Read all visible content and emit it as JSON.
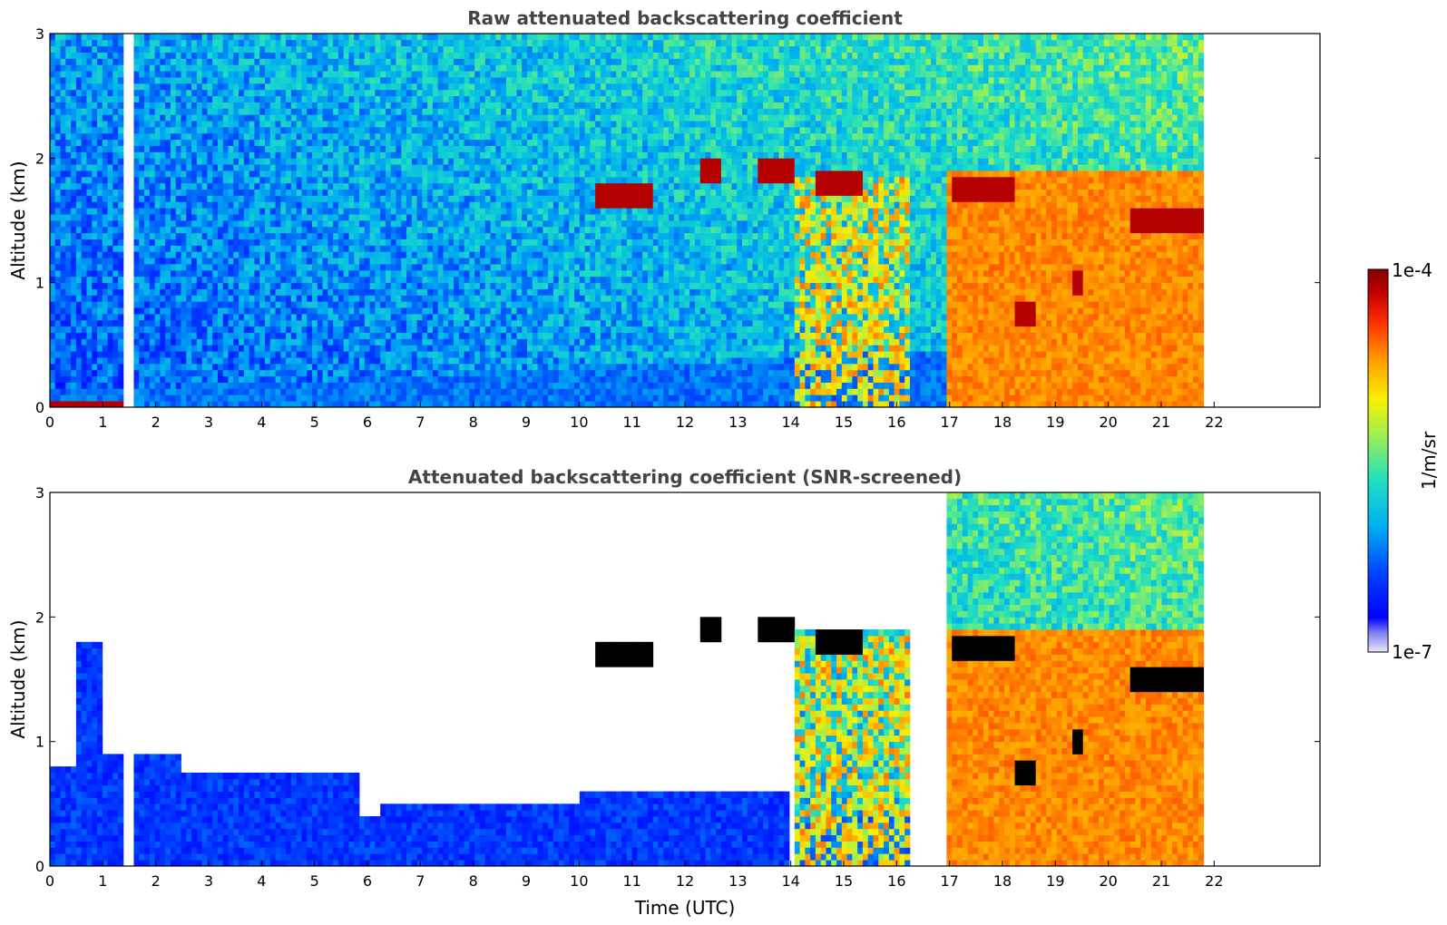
{
  "chart_data": [
    {
      "type": "heatmap",
      "title": "Raw attenuated backscattering coefficient",
      "xlabel": "",
      "ylabel": "Altitude (km)",
      "xlim": [
        0,
        24
      ],
      "ylim": [
        0,
        3
      ],
      "x_ticks": [
        "0",
        "1",
        "2",
        "3",
        "4",
        "5",
        "6",
        "7",
        "8",
        "9",
        "10",
        "11",
        "12",
        "13",
        "14",
        "15",
        "16",
        "17",
        "18",
        "19",
        "20",
        "21",
        "22"
      ],
      "y_ticks": [
        "0",
        "1",
        "2",
        "3"
      ],
      "data_extent_hours": [
        0,
        21.8
      ],
      "gap_hours": [
        1.42,
        1.55
      ],
      "cloud_base_km": [
        {
          "from": 10.3,
          "to": 11.4,
          "base_km": 1.7
        },
        {
          "from": 12.3,
          "to": 12.7,
          "base_km": 1.9
        },
        {
          "from": 13.4,
          "to": 14.1,
          "base_km": 1.9
        },
        {
          "from": 14.5,
          "to": 15.4,
          "base_km": 1.8
        },
        {
          "from": 17.0,
          "to": 18.2,
          "base_km": 1.75
        },
        {
          "from": 18.2,
          "to": 18.6,
          "base_km": 0.75
        },
        {
          "from": 19.3,
          "to": 19.5,
          "base_km": 1.0
        },
        {
          "from": 20.4,
          "to": 21.8,
          "base_km": 1.5
        }
      ]
    },
    {
      "type": "heatmap",
      "title": "Attenuated backscattering coefficient (SNR-screened)",
      "xlabel": "Time (UTC)",
      "ylabel": "Altitude (km)",
      "xlim": [
        0,
        24
      ],
      "ylim": [
        0,
        3
      ],
      "x_ticks": [
        "0",
        "1",
        "2",
        "3",
        "4",
        "5",
        "6",
        "7",
        "8",
        "9",
        "10",
        "11",
        "12",
        "13",
        "14",
        "15",
        "16",
        "17",
        "18",
        "19",
        "20",
        "21",
        "22"
      ],
      "y_ticks": [
        "0",
        "1",
        "2",
        "3"
      ],
      "data_extent_hours": [
        0,
        21.8
      ],
      "gap_hours": [
        1.42,
        1.55
      ],
      "aerosol_top_km": [
        {
          "from": 0.0,
          "to": 0.5,
          "top_km": 0.8
        },
        {
          "from": 0.5,
          "to": 1.0,
          "top_km": 1.8
        },
        {
          "from": 1.0,
          "to": 2.5,
          "top_km": 0.9
        },
        {
          "from": 2.5,
          "to": 5.8,
          "top_km": 0.75
        },
        {
          "from": 5.8,
          "to": 6.2,
          "top_km": 0.4
        },
        {
          "from": 6.2,
          "to": 10.0,
          "top_km": 0.5
        },
        {
          "from": 10.0,
          "to": 14.0,
          "top_km": 0.6
        }
      ]
    }
  ],
  "colorbar": {
    "label": "1/m/sr",
    "max_label": "1e-4",
    "min_label": "1e-7",
    "scale": "log",
    "range": [
      1e-07,
      0.0001
    ],
    "colormap": [
      "#e8e8f8",
      "#0000ff",
      "#0080ff",
      "#00d0e0",
      "#40e0a0",
      "#c0f040",
      "#ffff00",
      "#ffa000",
      "#ff4000",
      "#d00000",
      "#800000"
    ]
  }
}
